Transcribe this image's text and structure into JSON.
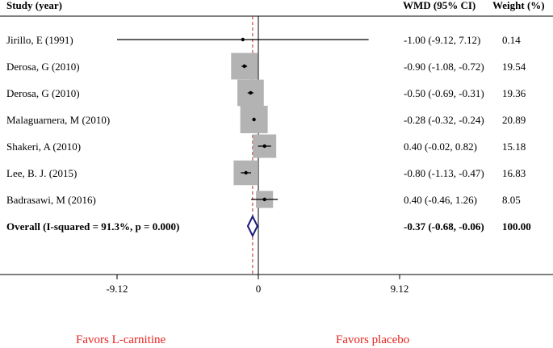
{
  "chart_data": {
    "type": "forest",
    "headers": {
      "study": "Study (year)",
      "effect": "WMD (95% CI)",
      "weight": "Weight (%)"
    },
    "studies": [
      {
        "label": "Jirillo, E (1991)",
        "wmd": -1.0,
        "lo": -9.12,
        "hi": 7.12,
        "ci_text": "-1.00 (-9.12, 7.12)",
        "weight": 0.14,
        "weight_text": "0.14"
      },
      {
        "label": "Derosa, G (2010)",
        "wmd": -0.9,
        "lo": -1.08,
        "hi": -0.72,
        "ci_text": "-0.90 (-1.08, -0.72)",
        "weight": 19.54,
        "weight_text": "19.54"
      },
      {
        "label": "Derosa, G (2010)",
        "wmd": -0.5,
        "lo": -0.69,
        "hi": -0.31,
        "ci_text": "-0.50 (-0.69, -0.31)",
        "weight": 19.36,
        "weight_text": "19.36"
      },
      {
        "label": "Malaguarnera, M (2010)",
        "wmd": -0.28,
        "lo": -0.32,
        "hi": -0.24,
        "ci_text": "-0.28 (-0.32, -0.24)",
        "weight": 20.89,
        "weight_text": "20.89"
      },
      {
        "label": "Shakeri, A (2010)",
        "wmd": 0.4,
        "lo": -0.02,
        "hi": 0.82,
        "ci_text": "0.40 (-0.02, 0.82)",
        "weight": 15.18,
        "weight_text": "15.18"
      },
      {
        "label": "Lee, B. J. (2015)",
        "wmd": -0.8,
        "lo": -1.13,
        "hi": -0.47,
        "ci_text": "-0.80 (-1.13, -0.47)",
        "weight": 16.83,
        "weight_text": "16.83"
      },
      {
        "label": "Badrasawi, M (2016)",
        "wmd": 0.4,
        "lo": -0.46,
        "hi": 1.26,
        "ci_text": "0.40 (-0.46, 1.26)",
        "weight": 8.05,
        "weight_text": "8.05"
      }
    ],
    "overall": {
      "label": "Overall  (I-squared = 91.3%, p = 0.000)",
      "wmd": -0.37,
      "lo": -0.68,
      "hi": -0.06,
      "ci_text": "-0.37 (-0.68, -0.06)",
      "weight_text": "100.00"
    },
    "x_axis": {
      "ticks": [
        -9.12,
        0,
        9.12
      ],
      "tick_labels": [
        "-9.12",
        "0",
        "9.12"
      ],
      "xlim": [
        -9.12,
        9.12
      ]
    },
    "null_line": 0,
    "favors": {
      "left": "Favors L-carnitine",
      "right": "Favors placebo"
    },
    "colors": {
      "box": "#b3b3b3",
      "diamond": "#1c1c7a",
      "overall_line": "#c0272d",
      "favor_text": "#e8231f"
    }
  }
}
